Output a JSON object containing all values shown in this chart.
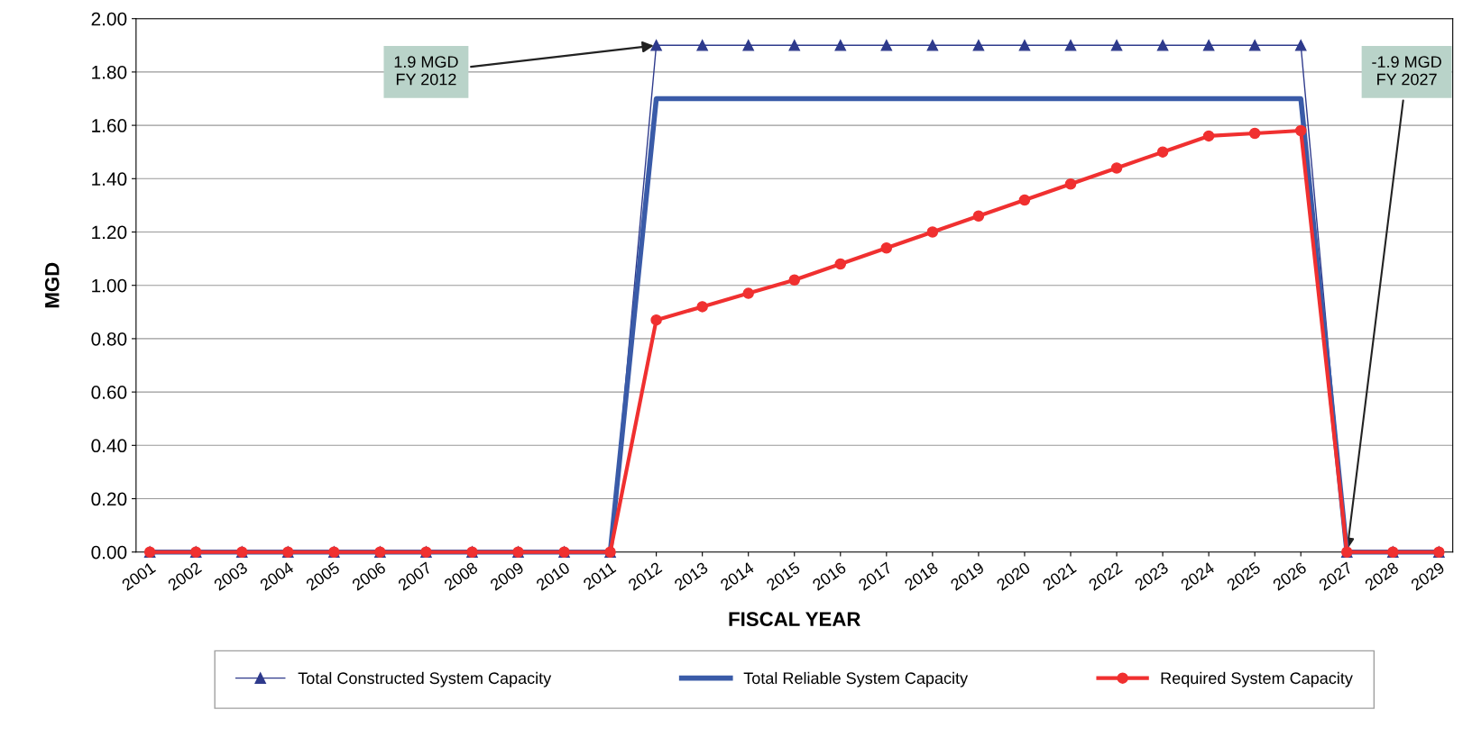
{
  "chart_data": {
    "type": "line",
    "xlabel": "FISCAL YEAR",
    "ylabel": "MGD",
    "categories": [
      "2001",
      "2002",
      "2003",
      "2004",
      "2005",
      "2006",
      "2007",
      "2008",
      "2009",
      "2010",
      "2011",
      "2012",
      "2013",
      "2014",
      "2015",
      "2016",
      "2017",
      "2018",
      "2019",
      "2020",
      "2021",
      "2022",
      "2023",
      "2024",
      "2025",
      "2026",
      "2027",
      "2028",
      "2029"
    ],
    "series": [
      {
        "name": "Total Constructed System Capacity",
        "color": "#2e3a8c",
        "marker": "triangle",
        "values": [
          0,
          0,
          0,
          0,
          0,
          0,
          0,
          0,
          0,
          0,
          0,
          1.9,
          1.9,
          1.9,
          1.9,
          1.9,
          1.9,
          1.9,
          1.9,
          1.9,
          1.9,
          1.9,
          1.9,
          1.9,
          1.9,
          1.9,
          0,
          0,
          0
        ]
      },
      {
        "name": "Total Reliable System Capacity",
        "color": "#3a5ba8",
        "marker": "none",
        "values": [
          0,
          0,
          0,
          0,
          0,
          0,
          0,
          0,
          0,
          0,
          0,
          1.7,
          1.7,
          1.7,
          1.7,
          1.7,
          1.7,
          1.7,
          1.7,
          1.7,
          1.7,
          1.7,
          1.7,
          1.7,
          1.7,
          1.7,
          0,
          0,
          0
        ]
      },
      {
        "name": "Required System Capacity",
        "color": "#f03030",
        "marker": "circle",
        "values": [
          0,
          0,
          0,
          0,
          0,
          0,
          0,
          0,
          0,
          0,
          0,
          0.87,
          0.92,
          0.97,
          1.02,
          1.08,
          1.14,
          1.2,
          1.26,
          1.32,
          1.38,
          1.44,
          1.5,
          1.56,
          1.57,
          1.58,
          0,
          0,
          0
        ]
      }
    ],
    "ylim": [
      0,
      2
    ],
    "yticks": [
      {
        "value": 0,
        "label": "0.00"
      },
      {
        "value": 0.2,
        "label": "0.20"
      },
      {
        "value": 0.4,
        "label": "0.40"
      },
      {
        "value": 0.6,
        "label": "0.60"
      },
      {
        "value": 0.8,
        "label": "0.80"
      },
      {
        "value": 1.0,
        "label": "1.00"
      },
      {
        "value": 1.2,
        "label": "1.20"
      },
      {
        "value": 1.4,
        "label": "1.40"
      },
      {
        "value": 1.6,
        "label": "1.60"
      },
      {
        "value": 1.8,
        "label": "1.80"
      },
      {
        "value": 2.0,
        "label": "2.00"
      }
    ],
    "grid": "y",
    "legend": "bottom",
    "annotations": [
      {
        "text": "1.9 MGD\nFY 2012",
        "x": "2012",
        "y": 1.9
      },
      {
        "text": "-1.9 MGD\nFY 2027",
        "x": "2027",
        "y": 0
      }
    ]
  }
}
